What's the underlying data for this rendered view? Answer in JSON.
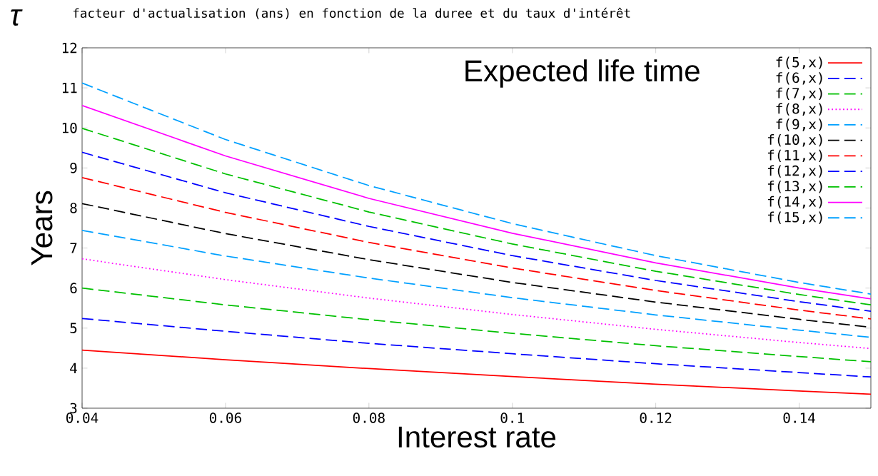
{
  "chart_data": {
    "type": "line",
    "title": "facteur d'actualisation (ans) en fonction de la duree et du taux d'intérêt",
    "xlabel": "Interest rate",
    "ylabel": "Years",
    "annotations": [
      "Expected life time",
      "τ"
    ],
    "x": [
      0.04,
      0.06,
      0.08,
      0.1,
      0.12,
      0.14,
      0.15
    ],
    "xlim": [
      0.04,
      0.15
    ],
    "xticks": [
      0.04,
      0.06,
      0.08,
      0.1,
      0.12,
      0.14
    ],
    "ylim": [
      3,
      12
    ],
    "yticks": [
      3,
      4,
      5,
      6,
      7,
      8,
      9,
      10,
      11,
      12
    ],
    "grid": false,
    "legend": "top right",
    "marker": "none",
    "series": [
      {
        "name": "f(5,x)",
        "color": "#ff0000",
        "line_style": "solid",
        "values": [
          4.45,
          4.21,
          3.99,
          3.79,
          3.6,
          3.43,
          3.35
        ]
      },
      {
        "name": "f(6,x)",
        "color": "#0000ff",
        "line_style": "dashed",
        "values": [
          5.24,
          4.92,
          4.62,
          4.36,
          4.11,
          3.89,
          3.78
        ]
      },
      {
        "name": "f(7,x)",
        "color": "#00c000",
        "line_style": "dashed",
        "values": [
          6.0,
          5.58,
          5.21,
          4.87,
          4.56,
          4.29,
          4.16
        ]
      },
      {
        "name": "f(8,x)",
        "color": "#ff00ff",
        "line_style": "dotted",
        "values": [
          6.73,
          6.21,
          5.75,
          5.34,
          4.97,
          4.64,
          4.49
        ]
      },
      {
        "name": "f(9,x)",
        "color": "#00a0ff",
        "line_style": "dashed",
        "values": [
          7.44,
          6.8,
          6.25,
          5.76,
          5.33,
          4.95,
          4.77
        ]
      },
      {
        "name": "f(10,x)",
        "color": "#000000",
        "line_style": "dashed",
        "values": [
          8.11,
          7.36,
          6.71,
          6.14,
          5.65,
          5.22,
          5.02
        ]
      },
      {
        "name": "f(11,x)",
        "color": "#ff0000",
        "line_style": "dashed",
        "values": [
          8.76,
          7.89,
          7.14,
          6.5,
          5.94,
          5.45,
          5.23
        ]
      },
      {
        "name": "f(12,x)",
        "color": "#0000ff",
        "line_style": "dashed",
        "values": [
          9.39,
          8.38,
          7.54,
          6.81,
          6.19,
          5.66,
          5.42
        ]
      },
      {
        "name": "f(13,x)",
        "color": "#00c000",
        "line_style": "dashed",
        "values": [
          9.99,
          8.85,
          7.9,
          7.1,
          6.42,
          5.84,
          5.58
        ]
      },
      {
        "name": "f(14,x)",
        "color": "#ff00ff",
        "line_style": "solid",
        "values": [
          10.56,
          9.3,
          8.24,
          7.37,
          6.63,
          6.0,
          5.73
        ]
      },
      {
        "name": "f(15,x)",
        "color": "#00a0ff",
        "line_style": "dashed",
        "values": [
          11.12,
          9.71,
          8.56,
          7.61,
          6.81,
          6.14,
          5.85
        ]
      }
    ]
  }
}
